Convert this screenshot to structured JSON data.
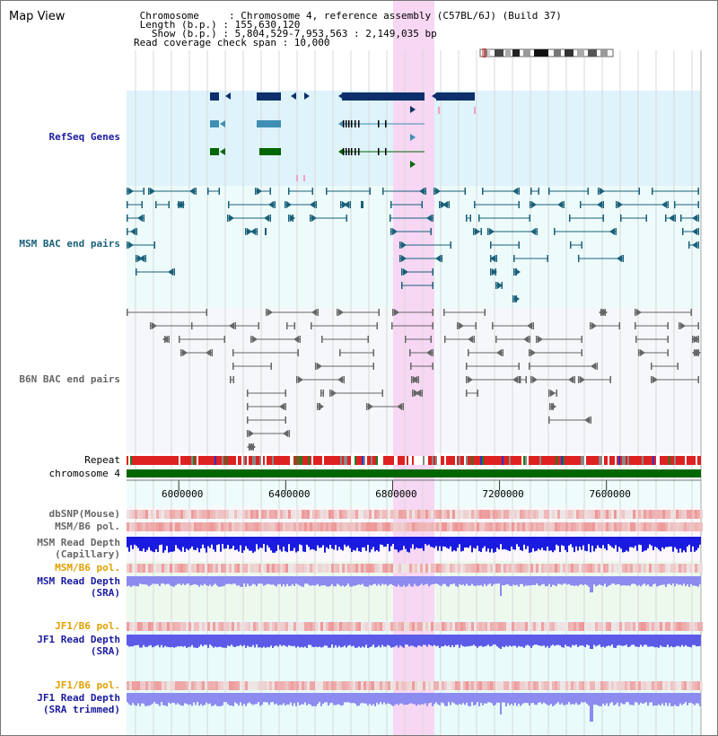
{
  "title": "Map View",
  "info": {
    "line1": " Chromosome     : Chromosome 4, reference assembly (C57BL/6J) (Build 37)",
    "line2": " Length (b.p.) : 155,630,120",
    "line3": "   Show (b.p.) : 5,804,529-7,953,563 : 2,149,035 bp",
    "line4": "Read coverage check span : 10,000"
  },
  "labels": {
    "refseq": "RefSeq Genes",
    "msm_bac": "MSM BAC end pairs",
    "b6n_bac": "B6N BAC end pairs",
    "repeat": "Repeat",
    "chromosome": "chromosome 4",
    "dbsnp": "dbSNP(Mouse)",
    "msm_b6_pol": "MSM/B6 pol.",
    "msm_depth_cap_1": "MSM Read Depth",
    "msm_depth_cap_2": "(Capillary)",
    "msm_b6_pol_sra": "MSM/B6 pol.",
    "msm_depth_sra_1": "MSM Read Depth",
    "msm_depth_sra_2": "(SRA)",
    "jf1_b6_pol": "JF1/B6 pol.",
    "jf1_depth_sra_1": "JF1 Read Depth",
    "jf1_depth_sra_2": "(SRA)",
    "jf1_b6_pol_2": "JF1/B6 pol.",
    "jf1_depth_trim_1": "JF1 Read Depth",
    "jf1_depth_trim_2": "(SRA trimmed)"
  },
  "axis": {
    "start_bp": 5804529,
    "end_bp": 7953563,
    "ticks": [
      "6000000",
      "6400000",
      "6800000",
      "7200000",
      "7600000"
    ]
  },
  "colors": {
    "refseq_bg": "#dff3fb",
    "bac_bg": "#edfbfb",
    "highlight": "#f7d7f4",
    "grid": "#d8d8d8",
    "gene_dark": "#0d2f6b",
    "gene_mid": "#3f8fb4",
    "gene_green": "#006600",
    "msm_bac": "#19607a",
    "b6n_bac": "#666666",
    "chromosome": "#006600",
    "depth_dark": "#1a1ae0",
    "depth_light": "#8b8bf0",
    "depth_mid": "#5b5be8",
    "pol": "#ee3333"
  }
}
